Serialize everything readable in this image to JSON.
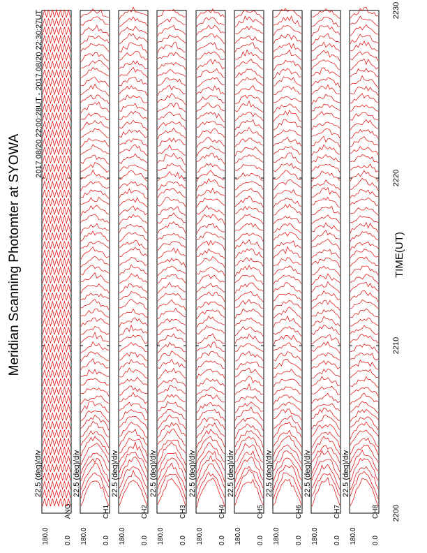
{
  "title": "Meridian Scanning Photomter at SYOWA",
  "time_range": "2017 08/20 22:00:28UT - 2017 08/20 22:30:27UT",
  "axis": {
    "xlabel": "TIME(UT)",
    "ticks": [
      "2200",
      "2210",
      "2220",
      "2230"
    ]
  },
  "colors": {
    "trace": "#e00000",
    "frame": "#000000"
  },
  "panels": [
    {
      "label": "ANG",
      "scale": "22.5 (deg)/div",
      "ymax": "180.0",
      "ymin": "0.0"
    },
    {
      "label": "CH1",
      "scale": "22.5 (deg)/div",
      "ymax": "180.0",
      "ymin": "0.0"
    },
    {
      "label": "CH2",
      "scale": "22.5 (deg)/div",
      "ymax": "180.0",
      "ymin": "0.0"
    },
    {
      "label": "CH3",
      "scale": "22.5 (deg)/div",
      "ymax": "180.0",
      "ymin": "0.0"
    },
    {
      "label": "CH4",
      "scale": "22.5 (deg)/div",
      "ymax": "180.0",
      "ymin": "0.0"
    },
    {
      "label": "CH5",
      "scale": "22.5 (deg)/div",
      "ymax": "180.0",
      "ymin": "0.0"
    },
    {
      "label": "CH6",
      "scale": "22.5 (deg)/div",
      "ymax": "180.0",
      "ymin": "0.0"
    },
    {
      "label": "CH7",
      "scale": "22.5 (deg)/div",
      "ymax": "180.0",
      "ymin": "0.0"
    },
    {
      "label": "CH8",
      "scale": "22.5 (deg)/div",
      "ymax": "180.0",
      "ymin": "0.0"
    }
  ],
  "chart_data": {
    "type": "line",
    "title": "Meridian Scanning Photomter at SYOWA",
    "xlabel": "TIME(UT)",
    "x_ticks": [
      "2200",
      "2210",
      "2220",
      "2230"
    ],
    "xlim": [
      "2200",
      "2230"
    ],
    "series": [
      {
        "name": "ANG"
      },
      {
        "name": "CH1"
      },
      {
        "name": "CH2"
      },
      {
        "name": "CH3"
      },
      {
        "name": "CH4"
      },
      {
        "name": "CH5"
      },
      {
        "name": "CH6"
      },
      {
        "name": "CH7"
      },
      {
        "name": "CH8"
      }
    ]
  }
}
